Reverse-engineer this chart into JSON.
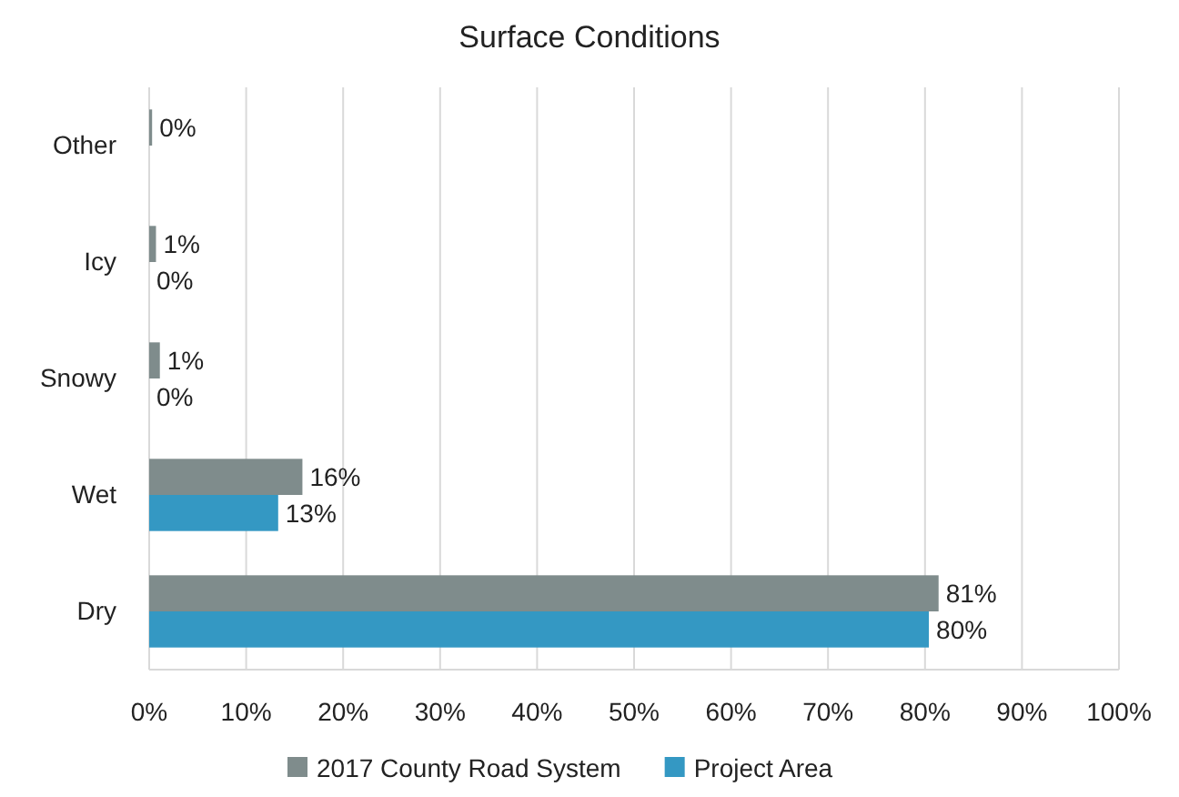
{
  "chart_data": {
    "type": "bar",
    "orientation": "horizontal",
    "title": "Surface Conditions",
    "categories": [
      "Other",
      "Icy",
      "Snowy",
      "Wet",
      "Dry"
    ],
    "series": [
      {
        "name": "2017 County Road System",
        "color": "#7f8c8c",
        "values": [
          0.3,
          0.7,
          1.1,
          15.8,
          81.4
        ],
        "value_labels": [
          "0%",
          "1%",
          "1%",
          "16%",
          "81%"
        ]
      },
      {
        "name": "Project Area",
        "color": "#3498c3",
        "values": [
          null,
          0,
          0,
          13.3,
          80.4
        ],
        "value_labels": [
          null,
          "0%",
          "0%",
          "13%",
          "80%"
        ]
      }
    ],
    "xlim": [
      0,
      100
    ],
    "xticks": [
      {
        "value": 0,
        "label": "0%"
      },
      {
        "value": 10,
        "label": "10%"
      },
      {
        "value": 20,
        "label": "20%"
      },
      {
        "value": 30,
        "label": "30%"
      },
      {
        "value": 40,
        "label": "40%"
      },
      {
        "value": 50,
        "label": "50%"
      },
      {
        "value": 60,
        "label": "60%"
      },
      {
        "value": 70,
        "label": "70%"
      },
      {
        "value": 80,
        "label": "80%"
      },
      {
        "value": 90,
        "label": "90%"
      },
      {
        "value": 100,
        "label": "100%"
      }
    ],
    "grid": "x",
    "legend": "bottom"
  }
}
